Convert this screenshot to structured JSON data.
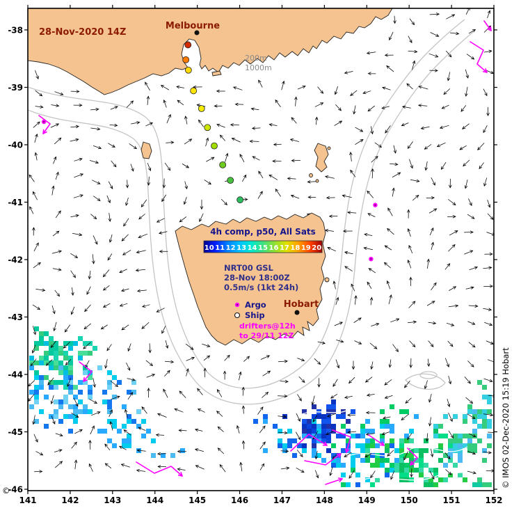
{
  "map": {
    "date_label": "28-Nov-2020 14Z",
    "cities": [
      {
        "name": "Melbourne"
      },
      {
        "name": "Hobart"
      }
    ],
    "depth_labels": [
      "200m",
      "1000m"
    ],
    "credit": "© IMOS 02-Dec-2020 15:19 Hobart",
    "copyright_mark": "©"
  },
  "colorbar": {
    "title": "4h comp, p50, All Sats",
    "ticks": [
      "10",
      "11",
      "12",
      "13",
      "14",
      "15",
      "16",
      "17",
      "18",
      "19",
      "20"
    ],
    "colors": [
      "#00008f",
      "#0020ff",
      "#0080ff",
      "#00c0ff",
      "#00e8d0",
      "#40e080",
      "#90e030",
      "#e0e000",
      "#ffa000",
      "#ff4000",
      "#a00000"
    ]
  },
  "info": {
    "product": "NRT00 GSL",
    "datetime": "28-Nov 18:00Z",
    "vector_scale": "0.5m/s (1kt 24h)"
  },
  "legend": {
    "argo": "Argo",
    "ship": "Ship",
    "drifters_line1": "drifters@12h",
    "drifters_line2": "to 29/11 12Z"
  },
  "axes": {
    "x_ticks": [
      141,
      142,
      143,
      144,
      145,
      146,
      147,
      148,
      149,
      150,
      151,
      152
    ],
    "y_ticks": [
      -38,
      -39,
      -40,
      -41,
      -42,
      -43,
      -44,
      -45,
      -46
    ]
  },
  "colors": {
    "land": "#f5c38f",
    "dark_red": "#8b1a00",
    "navy": "#16168c",
    "info_blue": "#30308a",
    "magenta": "#ff00ff",
    "depth_gray": "#8a8a8a",
    "contour_gray": "#c4c4c4"
  },
  "chart_data": {
    "type": "map",
    "region": "Bass Strait and Tasmania sea surface temperature with current vectors",
    "x_range": [
      141,
      152
    ],
    "y_range": [
      -46,
      -38
    ],
    "temperature_scale_c": [
      10,
      20
    ],
    "drifter_track": {
      "points": [
        {
          "lon": 144.78,
          "lat": -38.26,
          "temp_c": 19.5,
          "color": "#d42a00"
        },
        {
          "lon": 144.73,
          "lat": -38.52,
          "temp_c": 18.2,
          "color": "#ff7b00"
        },
        {
          "lon": 144.79,
          "lat": -38.7,
          "temp_c": 17.3,
          "color": "#ffd900"
        },
        {
          "lon": 144.91,
          "lat": -39.06,
          "temp_c": 17.2,
          "color": "#ffe400"
        },
        {
          "lon": 145.1,
          "lat": -39.37,
          "temp_c": 16.9,
          "color": "#f2ea00"
        },
        {
          "lon": 145.24,
          "lat": -39.7,
          "temp_c": 16.4,
          "color": "#cfe800"
        },
        {
          "lon": 145.4,
          "lat": -40.02,
          "temp_c": 15.8,
          "color": "#a3dc00"
        },
        {
          "lon": 145.6,
          "lat": -40.35,
          "temp_c": 15.1,
          "color": "#6ecc1e"
        },
        {
          "lon": 145.78,
          "lat": -40.62,
          "temp_c": 14.6,
          "color": "#46c23c"
        },
        {
          "lon": 146.01,
          "lat": -40.96,
          "temp_c": 14.1,
          "color": "#2dbd5f"
        }
      ]
    },
    "argo_floats": [
      {
        "lon": 149.2,
        "lat": -41.05
      },
      {
        "lon": 149.1,
        "lat": -41.99
      },
      {
        "lon": 141.38,
        "lat": -39.6
      }
    ]
  }
}
